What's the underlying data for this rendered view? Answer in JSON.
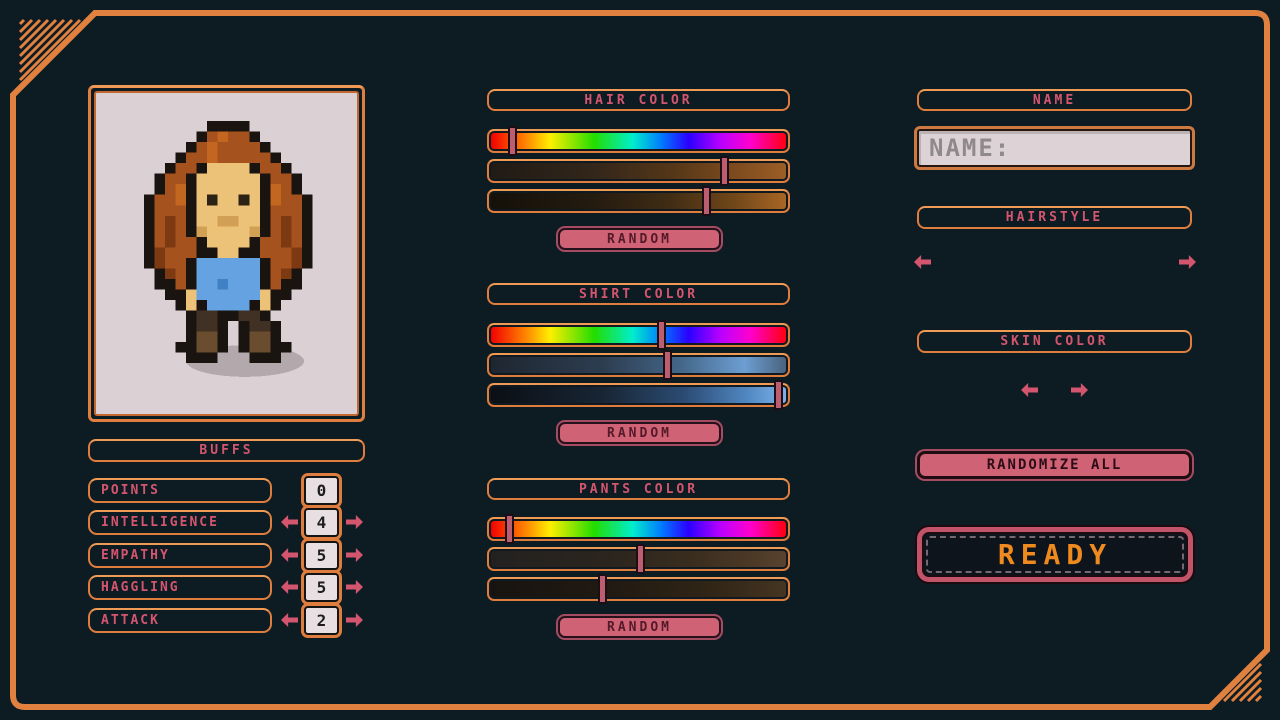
{
  "colors": {
    "background": "#0d1b23",
    "frame_orange": "#e0813f",
    "label_pink": "#d4566e",
    "button_pink": "#cf6375",
    "ready_text_orange": "#ef8a1e",
    "panel_light": "#ddd3d6",
    "slider_handle_pink": "#bd5e70"
  },
  "portrait": {
    "avatar_description": "pixel-art character with long auburn hair, blue shirt, brown boots",
    "shadow_color": "#b3a9ad",
    "palette": {
      "K": "#1a1410",
      "A": "#a6521e",
      "R": "#7d3a12",
      "O": "#c3661f",
      "S": "#ecc178",
      "T": "#d2a055",
      "E": "#2a2316",
      "B": "#64a2e2",
      "C": "#4080c4",
      "P": "#413024",
      "Q": "#6a4c2e"
    },
    "rows": [
      "......KKKK.........",
      ".....KAOAAK........",
      "....KAOAAAAK.......",
      "...KAAOAAAAAK......",
      "..KAAKSSSSKAAK.....",
      ".KAAKSSSSSSKAAK....",
      ".KAOKSSSSSSKOAK....",
      "KAAOKSESSESKOAAK...",
      "KAAAKSSSSSSKAAAK...",
      "KARAKSSTTSSKARAK...",
      "KARAKTSSSSTKARAK...",
      "KARAAKSSSSKAARAK...",
      "KRAAAKKSSKKAAARK...",
      "KRAAKBBBBBBKAARK...",
      ".KRAKBBBBBBKARK....",
      ".KKAKBBCBBBKAKK....",
      "..KKSBBBBBBSKK.....",
      "...KSKBBBBKSK......",
      "....KPPKKPPK.......",
      "....KPPK.KPPK......",
      "....KQQK.KQQK......",
      "...KKQQK.KQQKK.....",
      "....KKK...KKK......"
    ]
  },
  "buffs": {
    "title": "BUFFS",
    "stats": [
      {
        "label": "POINTS",
        "value": "0",
        "has_arrows": false
      },
      {
        "label": "INTELLIGENCE",
        "value": "4",
        "has_arrows": true
      },
      {
        "label": "EMPATHY",
        "value": "5",
        "has_arrows": true
      },
      {
        "label": "HAGGLING",
        "value": "5",
        "has_arrows": true
      },
      {
        "label": "ATTACK",
        "value": "2",
        "has_arrows": true
      }
    ]
  },
  "color_sections": [
    {
      "id": "hair",
      "title": "HAIR COLOR",
      "random_label": "RANDOM",
      "sliders": [
        {
          "kind": "hue",
          "handle_pct": 8
        },
        {
          "kind": "hair-sat",
          "handle_pct": 79
        },
        {
          "kind": "hair-val",
          "handle_pct": 73
        }
      ]
    },
    {
      "id": "shirt",
      "title": "SHIRT COLOR",
      "random_label": "RANDOM",
      "sliders": [
        {
          "kind": "hue",
          "handle_pct": 58
        },
        {
          "kind": "shirt-sat",
          "handle_pct": 60
        },
        {
          "kind": "shirt-val",
          "handle_pct": 97
        }
      ]
    },
    {
      "id": "pants",
      "title": "PANTS COLOR",
      "random_label": "RANDOM",
      "sliders": [
        {
          "kind": "hue",
          "handle_pct": 7
        },
        {
          "kind": "pants-sat",
          "handle_pct": 51
        },
        {
          "kind": "pants-val",
          "handle_pct": 38
        }
      ]
    }
  ],
  "name_section": {
    "title": "NAME",
    "placeholder": "NAME:",
    "value": ""
  },
  "hairstyle_section": {
    "title": "HAIRSTYLE"
  },
  "skin_section": {
    "title": "SKIN COLOR"
  },
  "actions": {
    "randomize_all": "RANDOMIZE ALL",
    "ready": "READY"
  }
}
